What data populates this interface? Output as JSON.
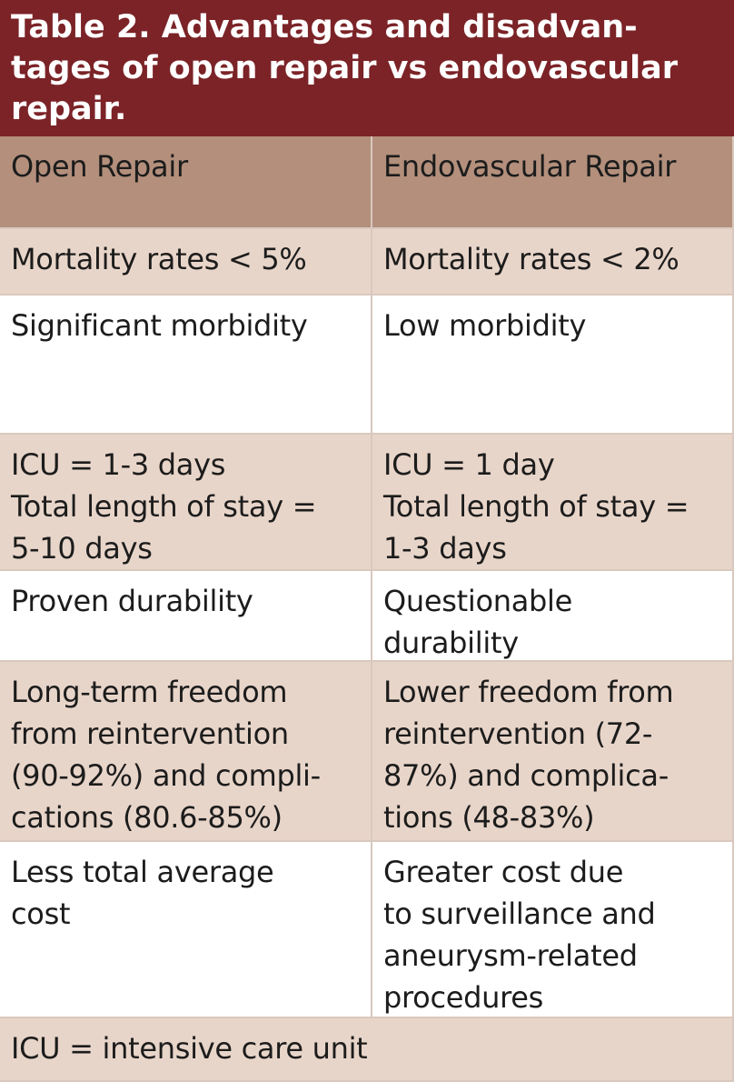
{
  "title": {
    "lines": [
      "Table 2. Advantages and disadvan-",
      "tages of open repair vs endovascular",
      "repair."
    ]
  },
  "table": {
    "header": [
      [
        "Open Repair"
      ],
      [
        "Endovascular Repair"
      ]
    ],
    "rows": [
      [
        [
          "Mortality rates < 5%"
        ],
        [
          "Mortality rates < 2%"
        ]
      ],
      [
        [
          "Significant morbidity"
        ],
        [
          "Low morbidity"
        ]
      ],
      [
        [
          "ICU = 1-3 days",
          "Total length of stay =",
          "5-10 days"
        ],
        [
          "ICU = 1 day",
          "Total length of stay =",
          "1-3 days"
        ]
      ],
      [
        [
          "Proven durability"
        ],
        [
          "Questionable",
          "durability"
        ]
      ],
      [
        [
          "Long-term freedom",
          "from reintervention",
          "(90-92%) and compli-",
          "cations (80.6-85%)"
        ],
        [
          "Lower freedom from",
          "reintervention (72-",
          "87%) and complica-",
          "tions (48-83%)"
        ]
      ],
      [
        [
          "Less total average",
          "cost"
        ],
        [
          "Greater cost due",
          "to surveillance and",
          "aneurysm-related",
          "procedures"
        ]
      ]
    ],
    "footnote": [
      "ICU = intensive care unit"
    ]
  }
}
